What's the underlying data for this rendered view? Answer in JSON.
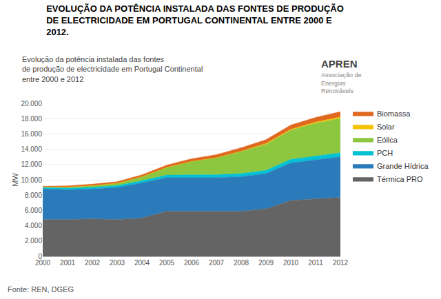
{
  "chart_data": {
    "type": "area",
    "title": "EVOLUÇÃO DA POTÊNCIA INSTALADA DAS FONTES DE PRODUÇÃO\nDE ELECTRICIDADE EM PORTUGAL CONTINENTAL ENTRE 2000 E\n2012.",
    "subtitle": "Evolução da potência instalada das fontes\nde produção de electricidade em Portugal Continental\nentre 2000 e 2012",
    "annotations": [
      "APREN",
      "Associação de\nEnergias\nRenováveis",
      "Fonte: REN, DGEG"
    ],
    "y_label": "MW",
    "x": [
      2000,
      2001,
      2002,
      2003,
      2004,
      2005,
      2006,
      2007,
      2008,
      2009,
      2010,
      2011,
      2012
    ],
    "series": [
      {
        "name": "Térmica PRO",
        "color": "#646464",
        "values": [
          4800,
          4800,
          4900,
          4800,
          5000,
          5900,
          5900,
          5900,
          5900,
          6200,
          7300,
          7500,
          7700
        ]
      },
      {
        "name": "Grande Hídrica",
        "color": "#2b7bba",
        "values": [
          4000,
          3900,
          3900,
          4200,
          4600,
          4400,
          4400,
          4400,
          4500,
          4600,
          4900,
          5100,
          5300
        ]
      },
      {
        "name": "PCH",
        "color": "#00c0d4",
        "values": [
          200,
          220,
          230,
          250,
          280,
          320,
          350,
          380,
          420,
          450,
          480,
          500,
          530
        ]
      },
      {
        "name": "Eólica",
        "color": "#8dc63f",
        "values": [
          60,
          130,
          200,
          300,
          520,
          1000,
          1750,
          2200,
          2900,
          3400,
          3800,
          4300,
          4500
        ]
      },
      {
        "name": "Solar",
        "color": "#f5c300",
        "values": [
          5,
          5,
          5,
          5,
          5,
          5,
          5,
          10,
          20,
          100,
          130,
          150,
          200
        ]
      },
      {
        "name": "Biomassa",
        "color": "#e06820",
        "values": [
          100,
          150,
          200,
          200,
          250,
          300,
          350,
          400,
          450,
          500,
          550,
          600,
          680
        ]
      }
    ],
    "xlim": [
      2000,
      2012
    ],
    "xticks": [
      2000,
      2001,
      2002,
      2003,
      2004,
      2005,
      2006,
      2007,
      2008,
      2009,
      2010,
      2011,
      2012
    ],
    "ylim": [
      0,
      20000
    ],
    "yticks": [
      0,
      {
        "value": 2000,
        "label": "2.000"
      },
      {
        "value": 4000,
        "label": "4.000"
      },
      {
        "value": 6000,
        "label": "6.000"
      },
      {
        "value": 8000,
        "label": "8.000"
      },
      {
        "value": 10000,
        "label": "10.000"
      },
      {
        "value": 12000,
        "label": "12.000"
      },
      {
        "value": 14000,
        "label": "14.000"
      },
      {
        "value": 16000,
        "label": "16.000"
      },
      {
        "value": 18000,
        "label": "18.000"
      },
      {
        "value": 20000,
        "label": "20.000"
      }
    ],
    "grid": true,
    "stacked": true,
    "legend": "right"
  }
}
